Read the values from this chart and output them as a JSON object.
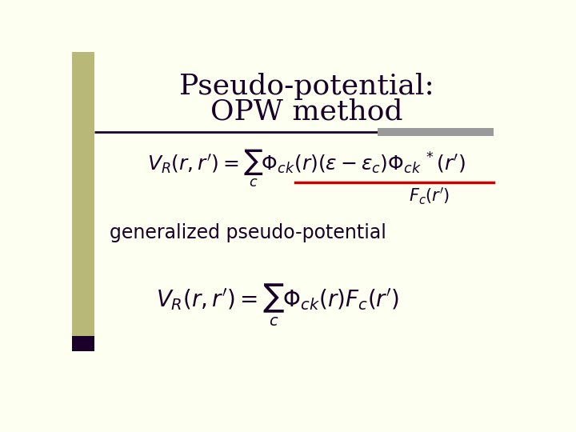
{
  "bg_color": "#fdfff0",
  "title_line1": "Pseudo-potential:",
  "title_line2": "OPW method",
  "title_color": "#1a0028",
  "title_fontsize": 26,
  "label_text": "generalized pseudo-potential",
  "label_fontsize": 17,
  "eq_fontsize": 18,
  "eq2_fontsize": 20,
  "left_strip_color": "#b8b878",
  "left_strip_bottom_bar": "#1a0028",
  "title_underline_color1": "#1a0028",
  "title_underline_color2": "#9a9a9a",
  "red_line_color": "#cc0000",
  "fc_label_color": "#1a0028"
}
